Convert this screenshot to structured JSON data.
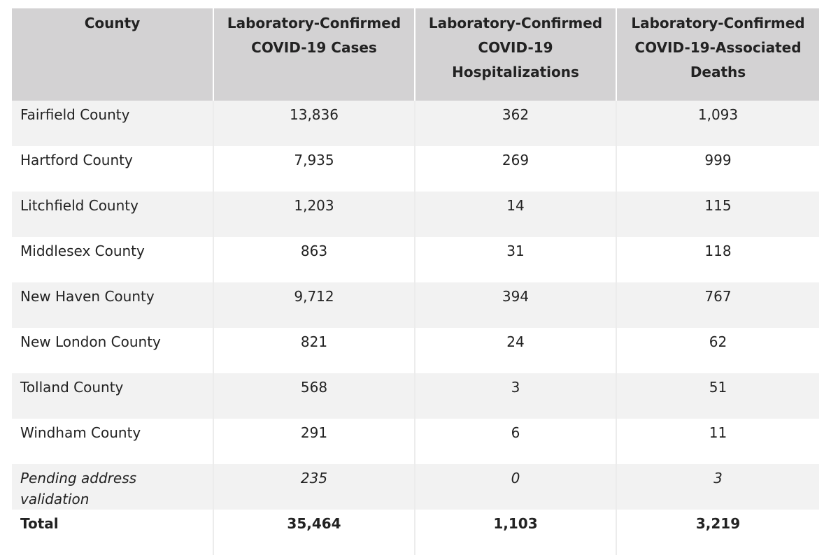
{
  "table": {
    "headers": [
      "County",
      "Laboratory-Confirmed COVID-19 Cases",
      "Laboratory-Confirmed COVID-19 Hospitalizations",
      "Laboratory-Confirmed COVID-19-Associated Deaths"
    ],
    "rows": [
      {
        "county": "Fairfield County",
        "cases": "13,836",
        "hospitalizations": "362",
        "deaths": "1,093"
      },
      {
        "county": "Hartford County",
        "cases": "7,935",
        "hospitalizations": "269",
        "deaths": "999"
      },
      {
        "county": "Litchfield County",
        "cases": "1,203",
        "hospitalizations": "14",
        "deaths": "115"
      },
      {
        "county": "Middlesex County",
        "cases": "863",
        "hospitalizations": "31",
        "deaths": "118"
      },
      {
        "county": "New Haven County",
        "cases": "9,712",
        "hospitalizations": "394",
        "deaths": "767"
      },
      {
        "county": "New London County",
        "cases": "821",
        "hospitalizations": "24",
        "deaths": "62"
      },
      {
        "county": "Tolland County",
        "cases": "568",
        "hospitalizations": "3",
        "deaths": "51"
      },
      {
        "county": "Windham County",
        "cases": "291",
        "hospitalizations": "6",
        "deaths": "11"
      },
      {
        "county": "Pending address validation",
        "cases": "235",
        "hospitalizations": "0",
        "deaths": "3"
      }
    ],
    "total": {
      "county": "Total",
      "cases": "35,464",
      "hospitalizations": "1,103",
      "deaths": "3,219"
    }
  }
}
